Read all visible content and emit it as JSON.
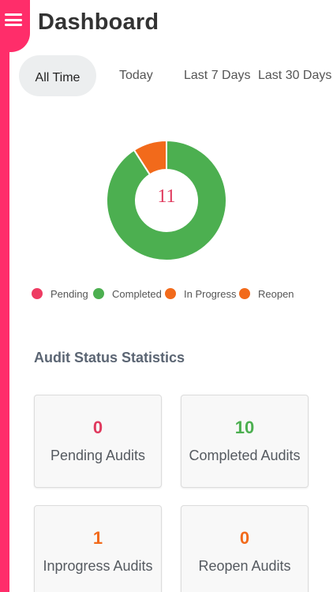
{
  "header": {
    "title": "Dashboard"
  },
  "tabs": [
    {
      "label": "All Time",
      "active": true
    },
    {
      "label": "Today",
      "active": false
    },
    {
      "label": "Last 7 Days",
      "active": false
    },
    {
      "label": "Last 30 Days",
      "active": false
    }
  ],
  "donut": {
    "center_label": "11",
    "slices": [
      {
        "name": "Pending",
        "value": 0,
        "color": "#ee3b62"
      },
      {
        "name": "Completed",
        "value": 10,
        "color": "#4caf50"
      },
      {
        "name": "In Progress",
        "value": 1,
        "color": "#f26a1b"
      },
      {
        "name": "Reopen",
        "value": 0,
        "color": "#f26a1b"
      }
    ]
  },
  "legend": [
    {
      "label": "Pending",
      "color": "#ee3b62"
    },
    {
      "label": "Completed",
      "color": "#4caf50"
    },
    {
      "label": "In Progress",
      "color": "#f26a1b"
    },
    {
      "label": "Reopen",
      "color": "#f26a1b"
    }
  ],
  "stats": {
    "title": "Audit Status Statistics",
    "cards": [
      {
        "value": "0",
        "label": "Pending Audits",
        "color": "#e03a5e"
      },
      {
        "value": "10",
        "label": "Completed Audits",
        "color": "#4caf50"
      },
      {
        "value": "1",
        "label": "Inprogress Audits",
        "color": "#f26a1b"
      },
      {
        "value": "0",
        "label": "Reopen Audits",
        "color": "#f26a1b"
      }
    ]
  },
  "colors": {
    "accent": "#ff2d6a"
  }
}
